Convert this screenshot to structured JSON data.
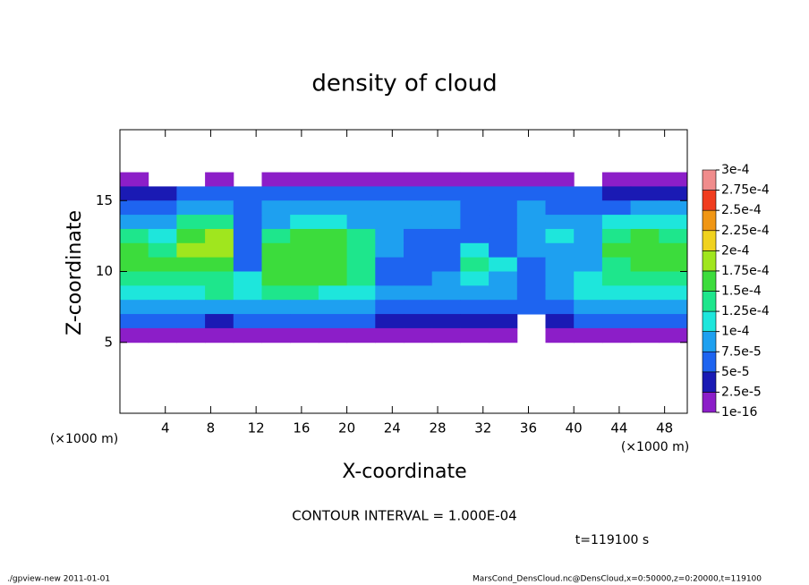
{
  "chart_data": {
    "type": "heatmap",
    "title": "density of cloud",
    "x_label": "X-coordinate",
    "y_label": "Z-coordinate",
    "y_unit_label": "(×1000 m)",
    "x_unit_label": "(×1000 m)",
    "contour_note": "CONTOUR INTERVAL = 1.000E-04",
    "time_note": "t=119100 s",
    "footer_left": "./gpview-new   2011-01-01",
    "footer_right": "MarsCond_DensCloud.nc@DensCloud,x=0:50000,z=0:20000,t=119100",
    "xlim": [
      0,
      50
    ],
    "ylim": [
      0,
      20
    ],
    "xticks": [
      4,
      8,
      12,
      16,
      20,
      24,
      28,
      32,
      36,
      40,
      44,
      48
    ],
    "yticks": [
      5,
      10,
      15
    ],
    "x": [
      1.25,
      3.75,
      6.25,
      8.75,
      11.25,
      13.75,
      16.25,
      18.75,
      21.25,
      23.75,
      26.25,
      28.75,
      31.25,
      33.75,
      36.25,
      38.75,
      41.25,
      43.75,
      46.25,
      48.75
    ],
    "y": [
      16.5,
      15.5,
      14.5,
      13.5,
      12.5,
      11.5,
      10.5,
      9.5,
      8.5,
      7.5,
      6.5,
      5.5
    ],
    "z": [
      [
        1e-05,
        null,
        null,
        1e-05,
        null,
        1e-05,
        1e-05,
        1e-05,
        1e-05,
        1e-05,
        1e-05,
        1e-05,
        1e-05,
        1e-05,
        1e-05,
        1e-05,
        null,
        1e-05,
        1e-05,
        1e-05
      ],
      [
        3e-05,
        4e-05,
        5e-05,
        6e-05,
        5e-05,
        5e-05,
        6e-05,
        6e-05,
        6e-05,
        6e-05,
        7e-05,
        7e-05,
        6e-05,
        6e-05,
        5e-05,
        5e-05,
        5e-05,
        4e-05,
        4e-05,
        3e-05
      ],
      [
        6e-05,
        7e-05,
        9e-05,
        9e-05,
        6e-05,
        8e-05,
        8e-05,
        8e-05,
        9e-05,
        9e-05,
        8e-05,
        9e-05,
        7e-05,
        7e-05,
        8e-05,
        7e-05,
        7e-05,
        7e-05,
        8e-05,
        8e-05
      ],
      [
        9e-05,
        8e-05,
        0.00013,
        0.00014,
        6e-05,
        9e-05,
        0.00011,
        0.00011,
        9e-05,
        9e-05,
        8e-05,
        8e-05,
        6e-05,
        7e-05,
        8e-05,
        8e-05,
        9e-05,
        0.00011,
        0.00012,
        0.00011
      ],
      [
        0.00013,
        0.00011,
        0.00017,
        0.00018,
        6e-05,
        0.00014,
        0.00015,
        0.00015,
        0.00013,
        8e-05,
        6e-05,
        7e-05,
        5e-05,
        6e-05,
        9e-05,
        0.0001,
        8e-05,
        0.00014,
        0.00016,
        0.00014
      ],
      [
        0.00015,
        0.00014,
        0.00018,
        0.00019,
        7e-05,
        0.00015,
        0.00017,
        0.00016,
        0.00014,
        9e-05,
        5e-05,
        6e-05,
        0.00011,
        6e-05,
        8e-05,
        9e-05,
        8e-05,
        0.00015,
        0.00017,
        0.00015
      ],
      [
        0.00015,
        0.00015,
        0.00016,
        0.00015,
        6e-05,
        0.00016,
        0.00016,
        0.00016,
        0.00014,
        6e-05,
        5e-05,
        6e-05,
        0.00013,
        0.00011,
        5e-05,
        8e-05,
        9e-05,
        0.00014,
        0.00016,
        0.00015
      ],
      [
        0.00014,
        0.00014,
        0.00014,
        0.00014,
        0.00012,
        0.00015,
        0.00015,
        0.00015,
        0.00014,
        7e-05,
        6e-05,
        8e-05,
        0.00011,
        9e-05,
        6e-05,
        8e-05,
        0.0001,
        0.00013,
        0.00014,
        0.00014
      ],
      [
        0.00012,
        0.00012,
        0.00012,
        0.00013,
        0.00012,
        0.00013,
        0.00013,
        0.00012,
        0.00011,
        9e-05,
        8e-05,
        9e-05,
        9e-05,
        8e-05,
        7e-05,
        9e-05,
        0.00011,
        0.00012,
        0.00012,
        0.00012
      ],
      [
        9e-05,
        9e-05,
        9e-05,
        9e-05,
        8e-05,
        8e-05,
        9e-05,
        9e-05,
        9e-05,
        7e-05,
        6e-05,
        7e-05,
        7e-05,
        6e-05,
        5e-05,
        7e-05,
        9e-05,
        9e-05,
        9e-05,
        9e-05
      ],
      [
        5e-05,
        5e-05,
        5e-05,
        4e-05,
        5e-05,
        5e-05,
        5e-05,
        5e-05,
        5e-05,
        4e-05,
        4e-05,
        4e-05,
        4e-05,
        4e-05,
        null,
        4e-05,
        5e-05,
        5e-05,
        5e-05,
        5e-05
      ],
      [
        2e-05,
        2e-05,
        1e-05,
        1e-05,
        1e-05,
        2e-05,
        2e-05,
        2e-05,
        2e-05,
        2e-05,
        2e-05,
        2e-05,
        2e-05,
        2e-05,
        null,
        2e-05,
        2e-05,
        2e-05,
        2e-05,
        2e-05
      ]
    ],
    "levels": [
      {
        "value": 1e-16,
        "label": "1e-16"
      },
      {
        "value": 2.5e-05,
        "label": "2.5e-5"
      },
      {
        "value": 5e-05,
        "label": "5e-5"
      },
      {
        "value": 7.5e-05,
        "label": "7.5e-5"
      },
      {
        "value": 0.0001,
        "label": "1e-4"
      },
      {
        "value": 0.000125,
        "label": "1.25e-4"
      },
      {
        "value": 0.00015,
        "label": "1.5e-4"
      },
      {
        "value": 0.000175,
        "label": "1.75e-4"
      },
      {
        "value": 0.0002,
        "label": "2e-4"
      },
      {
        "value": 0.000225,
        "label": "2.25e-4"
      },
      {
        "value": 0.00025,
        "label": "2.5e-4"
      },
      {
        "value": 0.000275,
        "label": "2.75e-4"
      },
      {
        "value": 0.0003,
        "label": "3e-4"
      }
    ],
    "colors": [
      "#8c1ec8",
      "#1a1ab4",
      "#1e64f0",
      "#1ea0f0",
      "#1ee6dc",
      "#1ee68c",
      "#3cdc3c",
      "#a0e61e",
      "#f0d21e",
      "#f09614",
      "#f03c1e",
      "#f08c8c"
    ]
  }
}
